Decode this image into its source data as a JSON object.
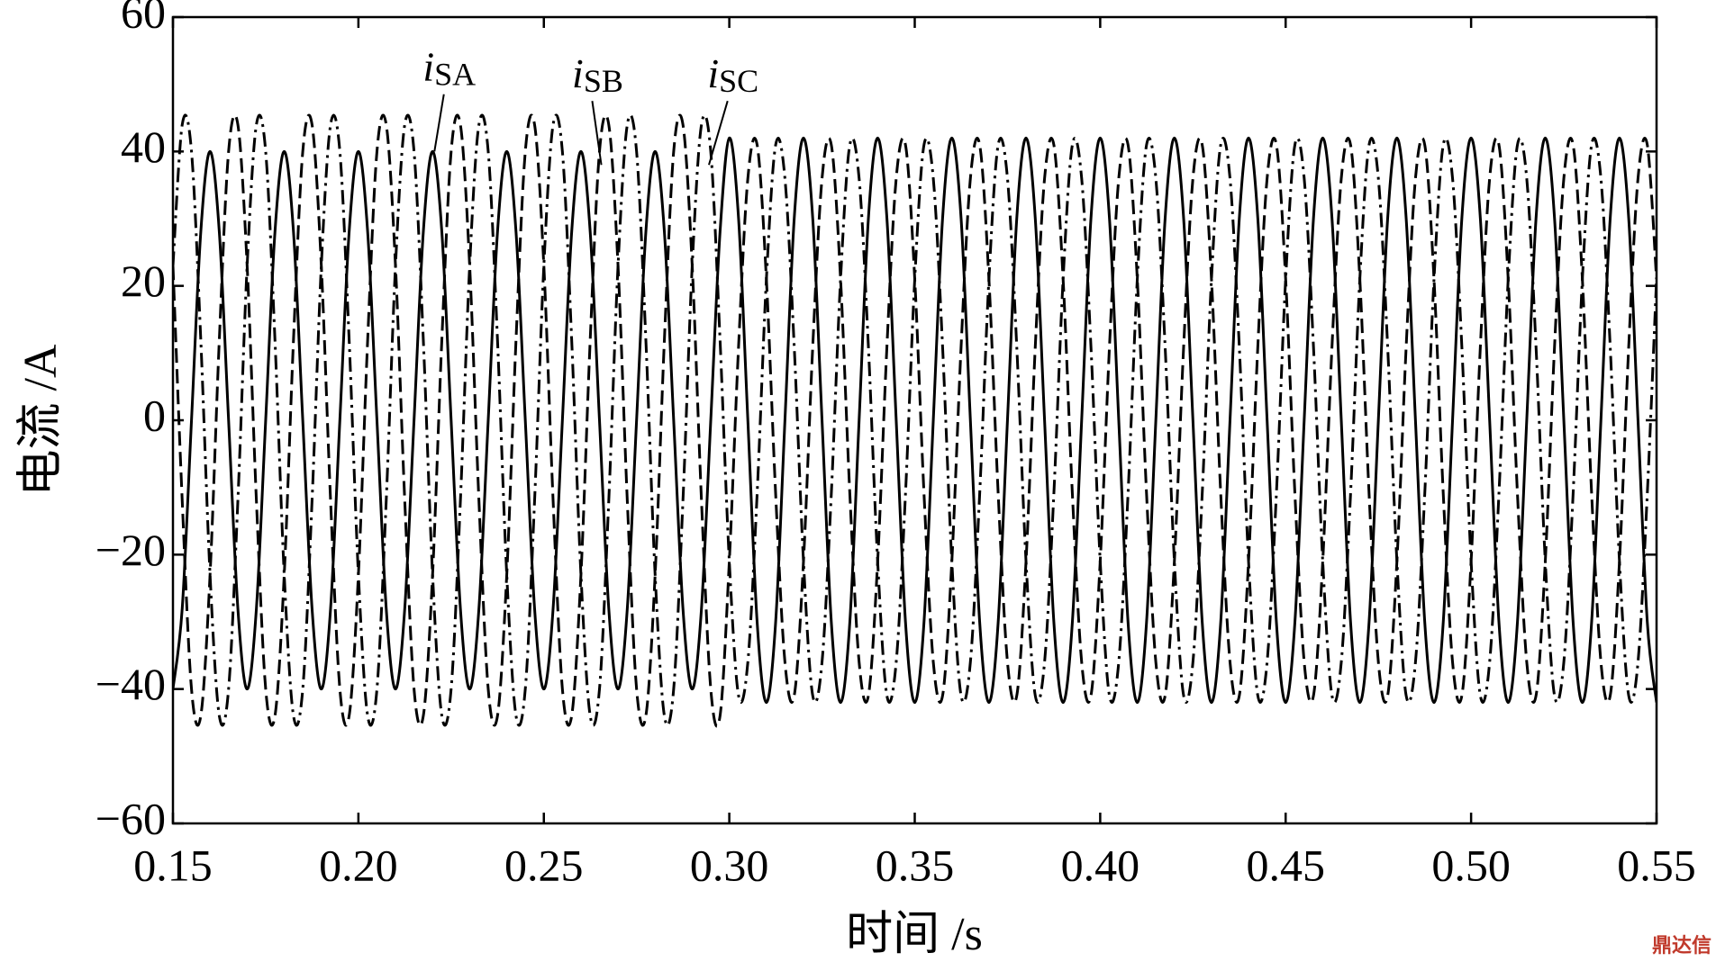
{
  "chart_data": {
    "type": "line",
    "ylabel": "电流 /A",
    "xlabel": "时间 /s",
    "watermark": "鼎达信",
    "xlim": [
      0.15,
      0.55
    ],
    "ylim": [
      -60,
      60
    ],
    "xticks": [
      0.15,
      {
        "value": 0.2,
        "label": "0.20"
      },
      0.25,
      {
        "value": 0.3,
        "label": "0.30"
      },
      0.35,
      {
        "value": 0.4,
        "label": "0.40"
      },
      0.45,
      {
        "value": 0.5,
        "label": "0.50"
      },
      0.55
    ],
    "yticks": [
      {
        "value": -60,
        "label": "−60"
      },
      {
        "value": -40,
        "label": "−40"
      },
      {
        "value": -20,
        "label": "−20"
      },
      0,
      20,
      40,
      60
    ],
    "x": [
      0.15,
      0.1525,
      0.155,
      0.1575,
      0.16,
      0.1625,
      0.165,
      0.1675,
      0.17,
      0.1725,
      0.175,
      0.1775,
      0.18,
      0.1825,
      0.185,
      0.1875,
      0.19,
      0.1925,
      0.195,
      0.1975,
      0.2,
      0.2025,
      0.205,
      0.2075,
      0.21,
      0.2125,
      0.215,
      0.2175,
      0.22,
      0.2225,
      0.225,
      0.2275,
      0.23,
      0.2325,
      0.235,
      0.2375,
      0.24,
      0.2425,
      0.245,
      0.2475,
      0.25,
      0.2525,
      0.255,
      0.2575,
      0.26,
      0.2625,
      0.265,
      0.2675,
      0.27,
      0.2725,
      0.275,
      0.2775,
      0.28,
      0.2825,
      0.285,
      0.2875,
      0.29,
      0.2925,
      0.295,
      0.2975,
      0.3,
      0.3025,
      0.305,
      0.3075,
      0.31,
      0.3125,
      0.315,
      0.3175,
      0.32,
      0.3225,
      0.325,
      0.3275,
      0.33,
      0.3325,
      0.335,
      0.3375,
      0.34,
      0.3425,
      0.345,
      0.3475,
      0.35,
      0.3525,
      0.355,
      0.3575,
      0.36,
      0.3625,
      0.365,
      0.3675,
      0.37,
      0.3725,
      0.375,
      0.3775,
      0.38,
      0.3825,
      0.385,
      0.3875,
      0.39,
      0.3925,
      0.395,
      0.3975,
      0.4,
      0.4025,
      0.405,
      0.4075,
      0.41,
      0.4125,
      0.415,
      0.4175,
      0.42,
      0.4225,
      0.425,
      0.4275,
      0.43,
      0.4325,
      0.435,
      0.4375,
      0.44,
      0.4425,
      0.445,
      0.4475,
      0.45,
      0.4525,
      0.455,
      0.4575,
      0.46,
      0.4625,
      0.465,
      0.4675,
      0.47,
      0.4725,
      0.475,
      0.4775,
      0.48,
      0.4825,
      0.485,
      0.4875,
      0.49,
      0.4925,
      0.495,
      0.4975,
      0.5,
      0.5025,
      0.505,
      0.5075,
      0.51,
      0.5125,
      0.515,
      0.5175,
      0.52,
      0.5225,
      0.525,
      0.5275,
      0.53,
      0.5325,
      0.535,
      0.5375,
      0.54,
      0.5425,
      0.545,
      0.5475,
      0.55
    ],
    "series": [
      {
        "name": "iSA",
        "color": "#000000",
        "dash": "solid",
        "values": [
          -40,
          -28,
          0,
          28,
          40,
          28,
          0,
          -28,
          -40,
          -28,
          0,
          28,
          40,
          28,
          0,
          -28,
          -40,
          -28,
          0,
          28,
          40,
          28,
          0,
          -28,
          -40,
          -28,
          0,
          28,
          40,
          28,
          0,
          -28,
          -40,
          -28,
          0,
          28,
          40,
          28,
          0,
          -28,
          -40,
          -28,
          0,
          28,
          40,
          28,
          0,
          -28,
          -40,
          -28,
          0,
          28,
          40,
          28,
          0,
          -28,
          -40,
          -28,
          0,
          28,
          42,
          30,
          0,
          -30,
          -42,
          -30,
          0,
          30,
          42,
          30,
          0,
          -30,
          -42,
          -30,
          0,
          30,
          42,
          30,
          0,
          -30,
          -42,
          -30,
          0,
          30,
          42,
          30,
          0,
          -30,
          -42,
          -30,
          0,
          30,
          42,
          30,
          0,
          -30,
          -42,
          -30,
          0,
          30,
          42,
          30,
          0,
          -30,
          -42,
          -30,
          0,
          30,
          42,
          30,
          0,
          -30,
          -42,
          -30,
          0,
          30,
          42,
          30,
          0,
          -30,
          -42,
          -30,
          0,
          30,
          42,
          30,
          0,
          -30,
          -42,
          -30,
          0,
          30,
          42,
          30,
          0,
          -30,
          -42,
          -30,
          0,
          30,
          42,
          30,
          0,
          -30,
          -42,
          -30,
          0,
          30,
          42,
          30,
          0,
          -30,
          -42,
          -30,
          0,
          30,
          42,
          30,
          0,
          -30,
          -42
        ]
      },
      {
        "name": "iSB",
        "color": "#000000",
        "dash": "dashed",
        "values": [
          23,
          -12,
          -40,
          -44,
          -23,
          12,
          40,
          44,
          23,
          -12,
          -40,
          -44,
          -23,
          12,
          40,
          44,
          23,
          -12,
          -40,
          -44,
          -23,
          12,
          40,
          44,
          23,
          -12,
          -40,
          -44,
          -23,
          12,
          40,
          44,
          23,
          -12,
          -40,
          -44,
          -23,
          12,
          40,
          44,
          23,
          -12,
          -40,
          -44,
          -23,
          12,
          40,
          44,
          23,
          -12,
          -40,
          -44,
          -23,
          12,
          40,
          44,
          23,
          -12,
          -40,
          -44,
          -21,
          11,
          36,
          41,
          21,
          -11,
          -36,
          -41,
          -21,
          11,
          36,
          41,
          21,
          -11,
          -36,
          -41,
          -21,
          11,
          36,
          41,
          21,
          -11,
          -36,
          -41,
          -21,
          11,
          36,
          41,
          21,
          -11,
          -36,
          -41,
          -21,
          11,
          36,
          41,
          21,
          -11,
          -36,
          -41,
          -21,
          11,
          36,
          41,
          21,
          -11,
          -36,
          -41,
          -21,
          11,
          36,
          41,
          21,
          -11,
          -36,
          -41,
          -21,
          11,
          36,
          41,
          21,
          -11,
          -36,
          -41,
          -21,
          11,
          36,
          41,
          21,
          -11,
          -36,
          -41,
          -21,
          11,
          36,
          41,
          21,
          -11,
          -36,
          -41,
          -21,
          11,
          36,
          41,
          21,
          -11,
          -36,
          -41,
          -21,
          11,
          36,
          41,
          21,
          -11,
          -36,
          -41,
          -21,
          11,
          36,
          41,
          21
        ]
      },
      {
        "name": "iSC",
        "color": "#000000",
        "dash": "dashdot",
        "values": [
          23,
          44,
          40,
          12,
          -23,
          -44,
          -40,
          -12,
          23,
          44,
          40,
          12,
          -23,
          -44,
          -40,
          -12,
          23,
          44,
          40,
          12,
          -23,
          -44,
          -40,
          -12,
          23,
          44,
          40,
          12,
          -23,
          -44,
          -40,
          -12,
          23,
          44,
          40,
          12,
          -23,
          -44,
          -40,
          -12,
          23,
          44,
          40,
          12,
          -23,
          -44,
          -40,
          -12,
          23,
          44,
          40,
          12,
          -23,
          -44,
          -40,
          -12,
          23,
          44,
          40,
          12,
          -21,
          -41,
          -36,
          -11,
          21,
          41,
          36,
          11,
          -21,
          -41,
          -36,
          -11,
          21,
          41,
          36,
          11,
          -21,
          -41,
          -36,
          -11,
          21,
          41,
          36,
          11,
          -21,
          -41,
          -36,
          -11,
          21,
          41,
          36,
          11,
          -21,
          -41,
          -36,
          -11,
          21,
          41,
          36,
          11,
          -21,
          -41,
          -36,
          -11,
          21,
          41,
          36,
          11,
          -21,
          -41,
          -36,
          -11,
          21,
          41,
          36,
          11,
          -21,
          -41,
          -36,
          -11,
          21,
          41,
          36,
          11,
          -21,
          -41,
          -36,
          -11,
          21,
          41,
          36,
          11,
          -21,
          -41,
          -36,
          -11,
          21,
          41,
          36,
          11,
          -21,
          -41,
          -36,
          -11,
          21,
          41,
          36,
          11,
          -21,
          -41,
          -36,
          -11,
          21,
          41,
          36,
          11,
          -21,
          -41,
          -36,
          -11,
          21
        ]
      }
    ]
  }
}
